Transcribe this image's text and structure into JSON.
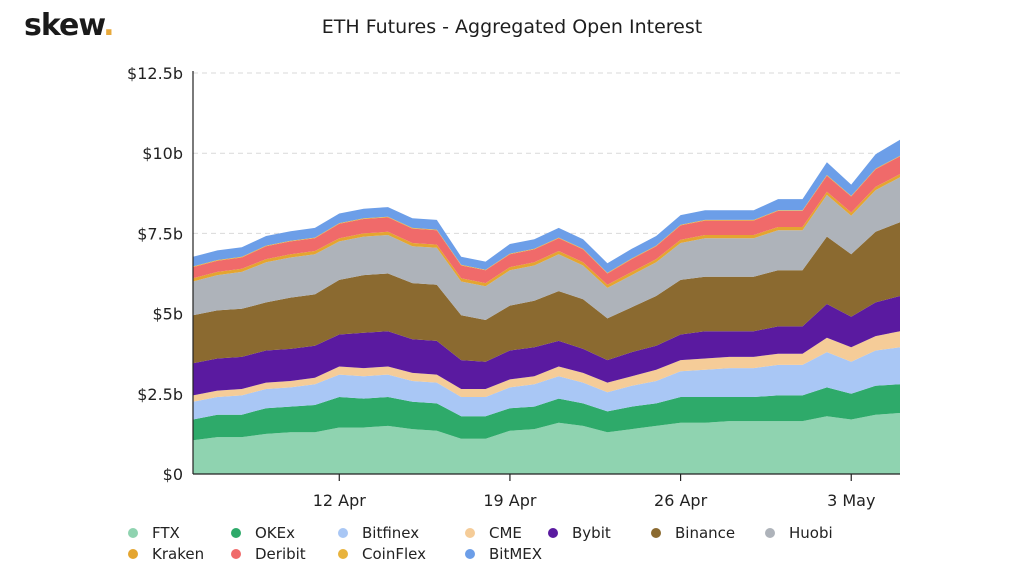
{
  "logo": {
    "text": "skew",
    "dot": "."
  },
  "chart_data": {
    "type": "area",
    "stacked": true,
    "title": "ETH Futures - Aggregated Open Interest",
    "xlabel": "",
    "ylabel": "",
    "x": [
      "2021-04-06",
      "2021-04-07",
      "2021-04-08",
      "2021-04-09",
      "2021-04-10",
      "2021-04-11",
      "2021-04-12",
      "2021-04-13",
      "2021-04-14",
      "2021-04-15",
      "2021-04-16",
      "2021-04-17",
      "2021-04-18",
      "2021-04-19",
      "2021-04-20",
      "2021-04-21",
      "2021-04-22",
      "2021-04-23",
      "2021-04-24",
      "2021-04-25",
      "2021-04-26",
      "2021-04-27",
      "2021-04-28",
      "2021-04-29",
      "2021-04-30",
      "2021-05-01",
      "2021-05-02",
      "2021-05-03",
      "2021-05-04",
      "2021-05-05"
    ],
    "x_ticks": [
      "12 Apr",
      "19 Apr",
      "26 Apr",
      "3 May"
    ],
    "x_tick_dates": [
      "2021-04-12",
      "2021-04-19",
      "2021-04-26",
      "2021-05-03"
    ],
    "y_ticks": [
      "$0",
      "$2.5b",
      "$5b",
      "$7.5b",
      "$10b",
      "$12.5b"
    ],
    "y_tick_values": [
      0,
      2.5,
      5,
      7.5,
      10,
      12.5
    ],
    "ylim": [
      0,
      12.5
    ],
    "y_unit": "billion USD",
    "grid": true,
    "legend_position": "bottom",
    "series": [
      {
        "name": "FTX",
        "color": "#8fd3b0",
        "values": [
          1.05,
          1.15,
          1.15,
          1.25,
          1.3,
          1.3,
          1.45,
          1.45,
          1.5,
          1.4,
          1.35,
          1.1,
          1.1,
          1.35,
          1.4,
          1.6,
          1.5,
          1.3,
          1.4,
          1.5,
          1.6,
          1.6,
          1.65,
          1.65,
          1.65,
          1.65,
          1.8,
          1.7,
          1.85,
          1.9
        ]
      },
      {
        "name": "OKEx",
        "color": "#2eaa6a",
        "values": [
          0.65,
          0.7,
          0.7,
          0.8,
          0.8,
          0.85,
          0.95,
          0.9,
          0.9,
          0.85,
          0.85,
          0.7,
          0.7,
          0.7,
          0.7,
          0.75,
          0.7,
          0.65,
          0.7,
          0.7,
          0.8,
          0.8,
          0.75,
          0.75,
          0.8,
          0.8,
          0.9,
          0.8,
          0.9,
          0.9
        ]
      },
      {
        "name": "Bitfinex",
        "color": "#a9c7f5",
        "values": [
          0.55,
          0.55,
          0.6,
          0.6,
          0.6,
          0.65,
          0.7,
          0.7,
          0.7,
          0.65,
          0.65,
          0.6,
          0.6,
          0.65,
          0.7,
          0.7,
          0.65,
          0.6,
          0.65,
          0.7,
          0.8,
          0.85,
          0.9,
          0.9,
          0.95,
          0.95,
          1.1,
          1.0,
          1.1,
          1.15
        ]
      },
      {
        "name": "CME",
        "color": "#f5cc98",
        "values": [
          0.2,
          0.2,
          0.2,
          0.2,
          0.2,
          0.2,
          0.25,
          0.25,
          0.25,
          0.25,
          0.25,
          0.25,
          0.25,
          0.25,
          0.25,
          0.3,
          0.3,
          0.3,
          0.3,
          0.35,
          0.35,
          0.35,
          0.35,
          0.35,
          0.35,
          0.35,
          0.45,
          0.45,
          0.45,
          0.5
        ]
      },
      {
        "name": "Bybit",
        "color": "#5a1aa0",
        "values": [
          1.0,
          1.0,
          1.0,
          1.0,
          1.0,
          1.0,
          1.0,
          1.1,
          1.1,
          1.05,
          1.05,
          0.9,
          0.85,
          0.9,
          0.9,
          0.8,
          0.75,
          0.7,
          0.75,
          0.75,
          0.8,
          0.85,
          0.8,
          0.8,
          0.85,
          0.85,
          1.05,
          0.95,
          1.05,
          1.1
        ]
      },
      {
        "name": "Binance",
        "color": "#8b6a30",
        "values": [
          1.5,
          1.5,
          1.5,
          1.5,
          1.6,
          1.6,
          1.7,
          1.8,
          1.8,
          1.75,
          1.75,
          1.4,
          1.3,
          1.4,
          1.45,
          1.55,
          1.55,
          1.3,
          1.4,
          1.55,
          1.7,
          1.7,
          1.7,
          1.7,
          1.75,
          1.75,
          2.1,
          1.95,
          2.2,
          2.3
        ]
      },
      {
        "name": "Huobi",
        "color": "#aeb3ba",
        "values": [
          1.05,
          1.1,
          1.15,
          1.25,
          1.25,
          1.25,
          1.2,
          1.2,
          1.2,
          1.15,
          1.15,
          1.05,
          1.05,
          1.1,
          1.1,
          1.15,
          1.05,
          0.95,
          1.0,
          1.05,
          1.15,
          1.2,
          1.2,
          1.2,
          1.25,
          1.25,
          1.3,
          1.2,
          1.3,
          1.4
        ]
      },
      {
        "name": "Kraken",
        "color": "#e4a530",
        "values": [
          0.1,
          0.1,
          0.1,
          0.1,
          0.1,
          0.1,
          0.1,
          0.1,
          0.1,
          0.1,
          0.1,
          0.1,
          0.1,
          0.1,
          0.1,
          0.1,
          0.1,
          0.1,
          0.1,
          0.1,
          0.1,
          0.1,
          0.1,
          0.1,
          0.1,
          0.1,
          0.1,
          0.1,
          0.1,
          0.1
        ]
      },
      {
        "name": "Deribit",
        "color": "#f06a6a",
        "values": [
          0.35,
          0.35,
          0.35,
          0.4,
          0.4,
          0.4,
          0.45,
          0.45,
          0.45,
          0.45,
          0.45,
          0.4,
          0.4,
          0.4,
          0.4,
          0.4,
          0.4,
          0.35,
          0.4,
          0.4,
          0.45,
          0.45,
          0.45,
          0.45,
          0.5,
          0.5,
          0.5,
          0.5,
          0.55,
          0.55
        ]
      },
      {
        "name": "CoinFlex",
        "color": "#e8b33d",
        "values": [
          0.02,
          0.02,
          0.02,
          0.02,
          0.02,
          0.02,
          0.02,
          0.02,
          0.02,
          0.02,
          0.02,
          0.02,
          0.02,
          0.02,
          0.02,
          0.02,
          0.02,
          0.02,
          0.02,
          0.02,
          0.02,
          0.02,
          0.02,
          0.02,
          0.02,
          0.02,
          0.02,
          0.02,
          0.02,
          0.02
        ]
      },
      {
        "name": "BitMEX",
        "color": "#6c9ee8",
        "values": [
          0.3,
          0.3,
          0.3,
          0.3,
          0.3,
          0.3,
          0.3,
          0.3,
          0.3,
          0.3,
          0.3,
          0.25,
          0.25,
          0.3,
          0.3,
          0.3,
          0.3,
          0.3,
          0.3,
          0.3,
          0.3,
          0.3,
          0.3,
          0.3,
          0.35,
          0.35,
          0.4,
          0.35,
          0.45,
          0.5
        ]
      }
    ]
  }
}
